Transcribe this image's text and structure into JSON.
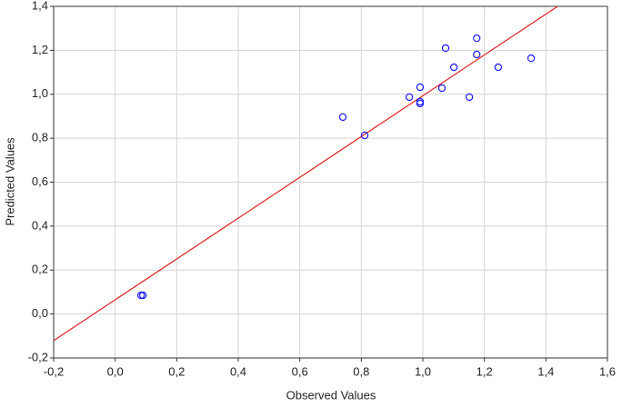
{
  "chart_data": {
    "type": "scatter",
    "x_label": "Observed Values",
    "y_label": "Predicted Values",
    "xlim": [
      -0.2,
      1.6
    ],
    "ylim": [
      -0.2,
      1.4
    ],
    "xticks": [
      {
        "value": -0.2,
        "label": "-0,2"
      },
      {
        "value": 0,
        "label": "0,0"
      },
      {
        "value": 0.2,
        "label": "0,2"
      },
      {
        "value": 0.4,
        "label": "0,4"
      },
      {
        "value": 0.6,
        "label": "0,6"
      },
      {
        "value": 0.8,
        "label": "0,8"
      },
      {
        "value": 1.0,
        "label": "1,0"
      },
      {
        "value": 1.2,
        "label": "1,2"
      },
      {
        "value": 1.4,
        "label": "1,4"
      },
      {
        "value": 1.6,
        "label": "1,6"
      }
    ],
    "yticks": [
      {
        "value": -0.2,
        "label": "-0,2"
      },
      {
        "value": 0,
        "label": "0,0"
      },
      {
        "value": 0.2,
        "label": "0,2"
      },
      {
        "value": 0.4,
        "label": "0,4"
      },
      {
        "value": 0.6,
        "label": "0,6"
      },
      {
        "value": 0.8,
        "label": "0,8"
      },
      {
        "value": 1.0,
        "label": "1,0"
      },
      {
        "value": 1.2,
        "label": "1,2"
      },
      {
        "value": 1.4,
        "label": "1,4"
      }
    ],
    "grid": true,
    "series": [
      {
        "color": "#1a1aff",
        "x": [
          0.084,
          0.09,
          0.74,
          0.811,
          0.956,
          0.991,
          0.991,
          0.991,
          1.062,
          1.074,
          1.101,
          1.151,
          1.175,
          1.175,
          1.245,
          1.352
        ],
        "values": [
          0.085,
          0.085,
          0.896,
          0.813,
          0.987,
          1.032,
          0.966,
          0.958,
          1.028,
          1.21,
          1.123,
          0.987,
          1.255,
          1.181,
          1.123,
          1.164
        ]
      }
    ],
    "fit_line": {
      "color": "#e02020",
      "x": [
        -0.2,
        1.438
      ],
      "values": [
        -0.121,
        1.4
      ]
    }
  }
}
